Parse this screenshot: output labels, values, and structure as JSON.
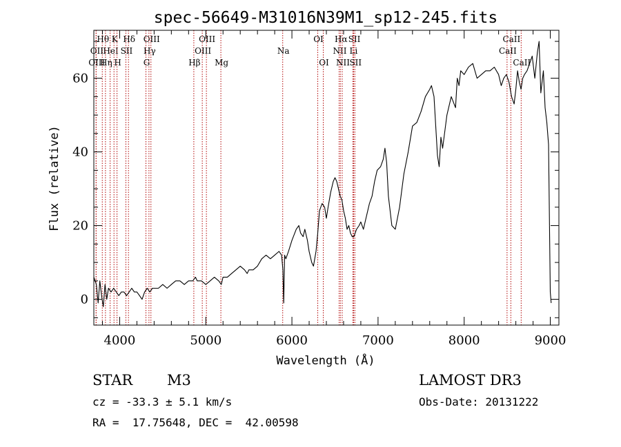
{
  "chart_data": {
    "type": "line",
    "title": "spec-56649-M31016N39M1_sp12-245.fits",
    "xlabel": "Wavelength (Å)",
    "ylabel": "Flux (relative)",
    "xlim": [
      3700,
      9100
    ],
    "ylim": [
      -7,
      73
    ],
    "xticks": [
      4000,
      5000,
      6000,
      7000,
      8000,
      9000
    ],
    "yticks": [
      0,
      20,
      40,
      60
    ],
    "series": [
      {
        "name": "flux",
        "x": [
          3700,
          3730,
          3750,
          3770,
          3790,
          3810,
          3830,
          3850,
          3870,
          3900,
          3930,
          3960,
          3990,
          4020,
          4050,
          4080,
          4110,
          4140,
          4170,
          4200,
          4230,
          4260,
          4290,
          4320,
          4350,
          4380,
          4410,
          4450,
          4500,
          4550,
          4600,
          4650,
          4700,
          4750,
          4800,
          4850,
          4880,
          4900,
          4950,
          5000,
          5050,
          5100,
          5150,
          5180,
          5200,
          5250,
          5300,
          5350,
          5400,
          5450,
          5480,
          5500,
          5550,
          5600,
          5650,
          5700,
          5750,
          5800,
          5850,
          5880,
          5895,
          5905,
          5915,
          5930,
          5960,
          6000,
          6050,
          6080,
          6100,
          6130,
          6150,
          6180,
          6200,
          6230,
          6250,
          6280,
          6300,
          6320,
          6350,
          6380,
          6400,
          6420,
          6450,
          6480,
          6500,
          6520,
          6540,
          6560,
          6580,
          6600,
          6620,
          6640,
          6660,
          6680,
          6700,
          6720,
          6750,
          6780,
          6800,
          6830,
          6860,
          6900,
          6930,
          6960,
          6990,
          7030,
          7060,
          7080,
          7100,
          7120,
          7140,
          7160,
          7200,
          7250,
          7300,
          7350,
          7400,
          7450,
          7500,
          7550,
          7600,
          7620,
          7650,
          7670,
          7690,
          7710,
          7730,
          7750,
          7800,
          7850,
          7900,
          7920,
          7940,
          7960,
          8000,
          8050,
          8100,
          8150,
          8200,
          8250,
          8300,
          8350,
          8400,
          8430,
          8460,
          8490,
          8520,
          8550,
          8580,
          8600,
          8620,
          8640,
          8660,
          8680,
          8700,
          8730,
          8760,
          8790,
          8820,
          8850,
          8870,
          8890,
          8920,
          8940,
          8960,
          8980,
          9000,
          9010
        ],
        "values": [
          6,
          4,
          -1,
          5,
          1,
          -2,
          4,
          0,
          3,
          2,
          3,
          2,
          1,
          2,
          2,
          1,
          2,
          3,
          2,
          2,
          1,
          0,
          2,
          3,
          2,
          3,
          3,
          3,
          4,
          3,
          4,
          5,
          5,
          4,
          5,
          5,
          6,
          5,
          5,
          4,
          5,
          6,
          5,
          4,
          6,
          6,
          7,
          8,
          9,
          8,
          7,
          8,
          8,
          9,
          11,
          12,
          11,
          12,
          13,
          12,
          8,
          -1,
          12,
          11,
          13,
          16,
          19,
          20,
          18,
          17,
          19,
          16,
          13,
          10,
          9,
          13,
          18,
          24,
          26,
          25,
          22,
          25,
          29,
          32,
          33,
          32,
          30,
          28,
          27,
          24,
          22,
          19,
          20,
          18,
          17,
          17,
          19,
          20,
          21,
          19,
          22,
          26,
          28,
          32,
          35,
          36,
          38,
          41,
          37,
          28,
          24,
          20,
          19,
          25,
          34,
          40,
          47,
          48,
          51,
          55,
          57,
          58,
          55,
          47,
          39,
          36,
          44,
          41,
          50,
          55,
          52,
          60,
          58,
          62,
          61,
          63,
          64,
          60,
          61,
          62,
          62,
          63,
          61,
          58,
          60,
          61,
          59,
          55,
          53,
          57,
          62,
          59,
          57,
          60,
          61,
          62,
          64,
          66,
          60,
          67,
          70,
          56,
          62,
          52,
          48,
          42,
          2,
          -1
        ]
      }
    ],
    "spectral_lines": [
      {
        "label": "Hθ",
        "wavelength": 3798,
        "row": 0
      },
      {
        "label": "K",
        "wavelength": 3934,
        "row": 0
      },
      {
        "label": "Hδ",
        "wavelength": 4102,
        "row": 0
      },
      {
        "label": "OIII",
        "wavelength": 4363,
        "row": 0
      },
      {
        "label": "OIII",
        "wavelength": 5007,
        "row": 0
      },
      {
        "label": "OI",
        "wavelength": 6300,
        "row": 0
      },
      {
        "label": "Hα",
        "wavelength": 6563,
        "row": 0
      },
      {
        "label": "SII",
        "wavelength": 6717,
        "row": 0
      },
      {
        "label": "CaII",
        "wavelength": 8542,
        "row": 0
      },
      {
        "label": "OII",
        "wavelength": 3727,
        "row": 1
      },
      {
        "label": "HeI",
        "wavelength": 3889,
        "row": 1
      },
      {
        "label": "SII",
        "wavelength": 4072,
        "row": 1
      },
      {
        "label": "Hγ",
        "wavelength": 4340,
        "row": 1
      },
      {
        "label": "OIII",
        "wavelength": 4959,
        "row": 1
      },
      {
        "label": "Na",
        "wavelength": 5893,
        "row": 1
      },
      {
        "label": "NII",
        "wavelength": 6548,
        "row": 1
      },
      {
        "label": "Li",
        "wavelength": 6708,
        "row": 1
      },
      {
        "label": "CaII",
        "wavelength": 8498,
        "row": 1
      },
      {
        "label": "OIII",
        "wavelength": 3726,
        "row": 2
      },
      {
        "label": "Hη",
        "wavelength": 3835,
        "row": 2
      },
      {
        "label": "H",
        "wavelength": 3969,
        "row": 2
      },
      {
        "label": "G",
        "wavelength": 4305,
        "row": 2
      },
      {
        "label": "Hβ",
        "wavelength": 4861,
        "row": 2
      },
      {
        "label": "Mg",
        "wavelength": 5175,
        "row": 2
      },
      {
        "label": "OI",
        "wavelength": 6364,
        "row": 2
      },
      {
        "label": "NII",
        "wavelength": 6584,
        "row": 2
      },
      {
        "label": "SII",
        "wavelength": 6731,
        "row": 2
      },
      {
        "label": "CaII",
        "wavelength": 8662,
        "row": 2
      }
    ],
    "line_color": "#b00000",
    "grid": false
  },
  "info": {
    "object_class": "STAR",
    "subclass": "M3",
    "survey": "LAMOST DR3",
    "redshift": "cz = -33.3 ± 5.1 km/s",
    "obs_date": "Obs-Date: 20131222",
    "coords": "RA =  17.75648, DEC =  42.00598"
  }
}
